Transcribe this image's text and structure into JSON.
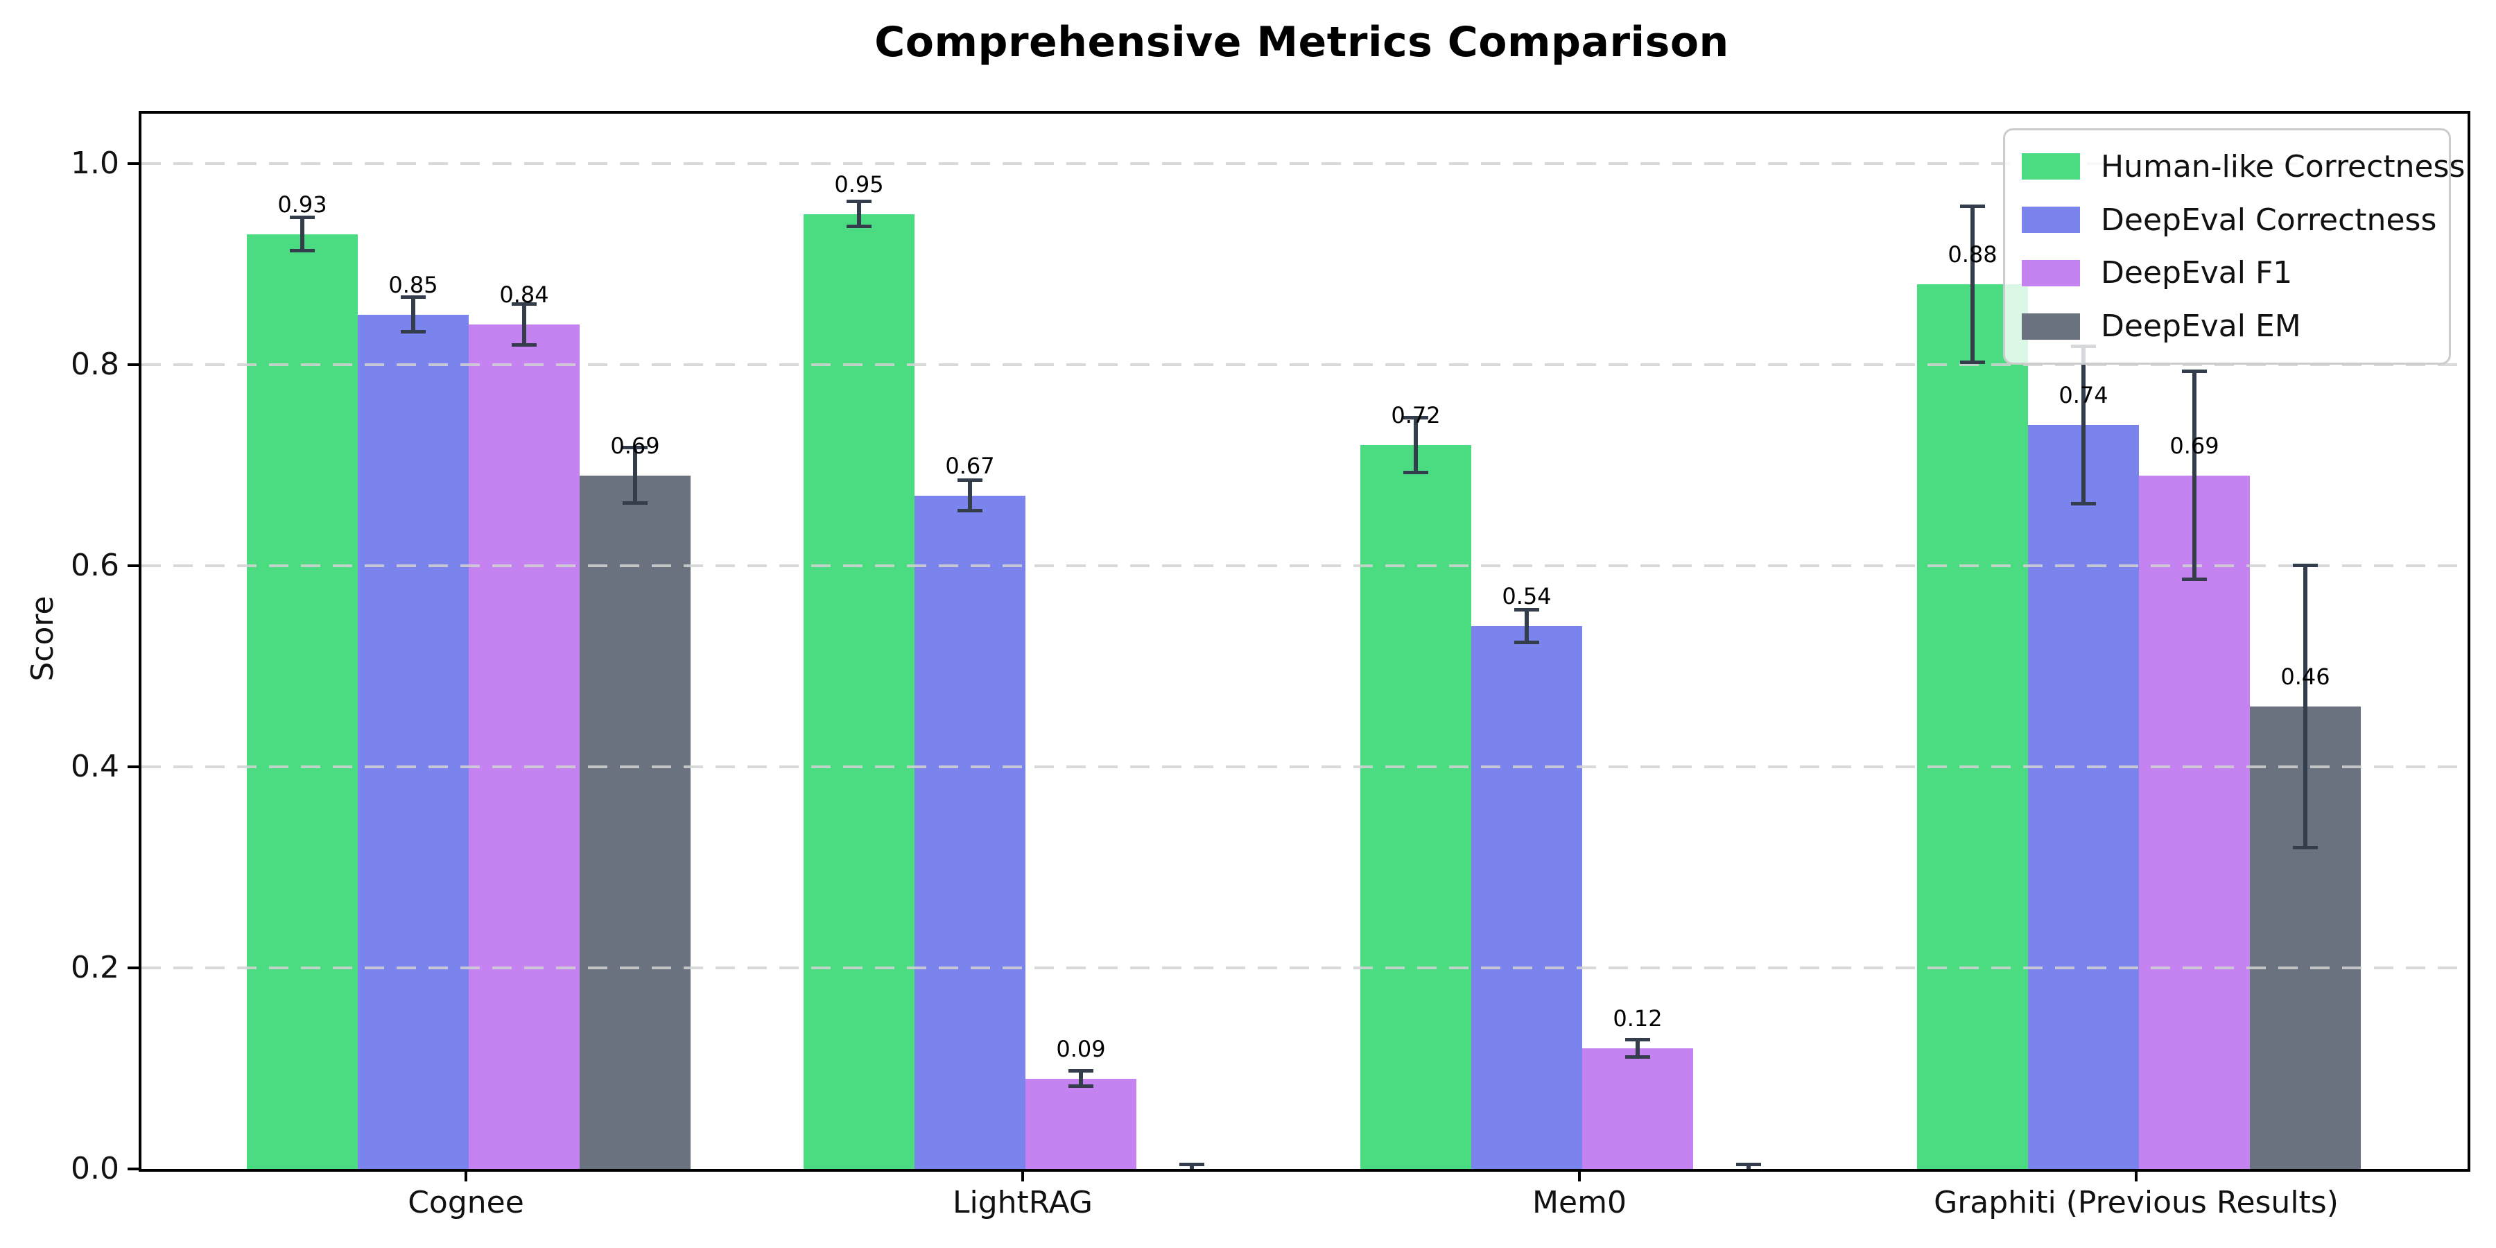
{
  "title": "Comprehensive Metrics Comparison",
  "chart_data": {
    "type": "bar",
    "title": "Comprehensive Metrics Comparison",
    "xlabel": "",
    "ylabel": "Score",
    "categories": [
      "Cognee",
      "LightRAG",
      "Mem0",
      "Graphiti (Previous Results)"
    ],
    "series": [
      {
        "name": "Human-like Correctness",
        "color": "#4bdc81",
        "values": [
          0.93,
          0.95,
          0.72,
          0.88
        ],
        "errors": [
          0.016,
          0.012,
          0.027,
          0.077
        ]
      },
      {
        "name": "DeepEval Correctness",
        "color": "#7b84ec",
        "values": [
          0.85,
          0.67,
          0.54,
          0.74
        ],
        "errors": [
          0.017,
          0.015,
          0.016,
          0.078
        ]
      },
      {
        "name": "DeepEval F1",
        "color": "#c583f2",
        "values": [
          0.84,
          0.09,
          0.12,
          0.69
        ],
        "errors": [
          0.02,
          0.007,
          0.008,
          0.103
        ]
      },
      {
        "name": "DeepEval EM",
        "color": "#6a7280",
        "values": [
          0.69,
          0.0,
          0.0,
          0.46
        ],
        "errors": [
          0.027,
          0.004,
          0.004,
          0.14
        ]
      }
    ],
    "bar_value_labels": [
      "0.93",
      "0.85",
      "0.84",
      "0.69",
      "0.95",
      "0.67",
      "0.09",
      "0.72",
      "0.54",
      "0.12",
      "0.88",
      "0.74",
      "0.69",
      "0.46"
    ],
    "yticks": [
      "0.0",
      "0.2",
      "0.4",
      "0.6",
      "0.8",
      "1.0"
    ],
    "ylim": [
      0,
      1.05
    ],
    "grid": "dashed-horizontal",
    "gridline_color": "#d2d2d2",
    "errorbar_color": "#343d4b",
    "legend_position": "upper-right",
    "legend_entries": [
      "Human-like Correctness",
      "DeepEval Correctness",
      "DeepEval F1",
      "DeepEval EM"
    ]
  }
}
